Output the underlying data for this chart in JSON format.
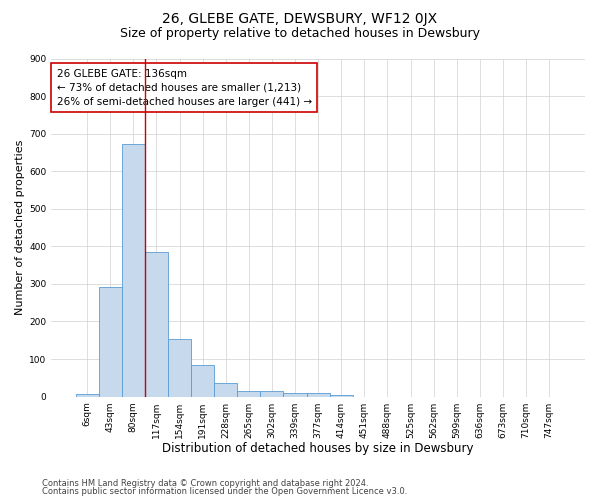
{
  "title": "26, GLEBE GATE, DEWSBURY, WF12 0JX",
  "subtitle": "Size of property relative to detached houses in Dewsbury",
  "xlabel": "Distribution of detached houses by size in Dewsbury",
  "ylabel": "Number of detached properties",
  "categories": [
    "6sqm",
    "43sqm",
    "80sqm",
    "117sqm",
    "154sqm",
    "191sqm",
    "228sqm",
    "265sqm",
    "302sqm",
    "339sqm",
    "377sqm",
    "414sqm",
    "451sqm",
    "488sqm",
    "525sqm",
    "562sqm",
    "599sqm",
    "636sqm",
    "673sqm",
    "710sqm",
    "747sqm"
  ],
  "values": [
    8,
    293,
    672,
    385,
    152,
    85,
    37,
    14,
    14,
    10,
    10,
    5,
    0,
    0,
    0,
    0,
    0,
    0,
    0,
    0,
    0
  ],
  "bar_color": "#c7d9ed",
  "bar_edge_color": "#5b9bd5",
  "vline_color": "#cc0000",
  "vline_x": 2.5,
  "annotation_line1": "26 GLEBE GATE: 136sqm",
  "annotation_line2": "← 73% of detached houses are smaller (1,213)",
  "annotation_line3": "26% of semi-detached houses are larger (441) →",
  "ylim": [
    0,
    900
  ],
  "yticks": [
    0,
    100,
    200,
    300,
    400,
    500,
    600,
    700,
    800,
    900
  ],
  "background_color": "#ffffff",
  "grid_color": "#d0d0d0",
  "footer_line1": "Contains HM Land Registry data © Crown copyright and database right 2024.",
  "footer_line2": "Contains public sector information licensed under the Open Government Licence v3.0.",
  "title_fontsize": 10,
  "subtitle_fontsize": 9,
  "xlabel_fontsize": 8.5,
  "ylabel_fontsize": 8,
  "tick_fontsize": 6.5,
  "annotation_fontsize": 7.5,
  "footer_fontsize": 6
}
